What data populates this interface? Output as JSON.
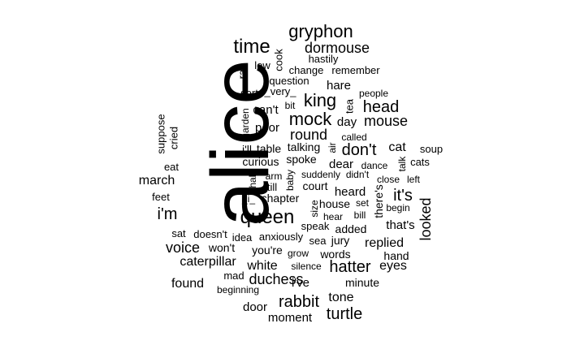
{
  "words": [
    {
      "text": "alice",
      "rotated": true
    },
    {
      "text": "queen"
    },
    {
      "text": "gryphon"
    },
    {
      "text": "time"
    },
    {
      "text": "dormouse"
    },
    {
      "text": "king"
    },
    {
      "text": "mock"
    },
    {
      "text": "head"
    },
    {
      "text": "mouse"
    },
    {
      "text": "don't"
    },
    {
      "text": "turtle"
    },
    {
      "text": "hatter"
    },
    {
      "text": "rabbit"
    },
    {
      "text": "duchess"
    },
    {
      "text": "voice"
    },
    {
      "text": "i'm"
    },
    {
      "text": "it's"
    },
    {
      "text": "looked",
      "rotated": true
    },
    {
      "text": "round"
    },
    {
      "text": "cat"
    },
    {
      "text": "march"
    },
    {
      "text": "replied"
    },
    {
      "text": "eyes"
    },
    {
      "text": "tone"
    },
    {
      "text": "caterpillar"
    },
    {
      "text": "white"
    },
    {
      "text": "found"
    },
    {
      "text": "door"
    },
    {
      "text": "moment"
    },
    {
      "text": "i've"
    },
    {
      "text": "that's"
    },
    {
      "text": "heard"
    },
    {
      "text": "dear"
    },
    {
      "text": "day"
    },
    {
      "text": "poor"
    },
    {
      "text": "can't"
    },
    {
      "text": "hare"
    },
    {
      "text": "curious"
    },
    {
      "text": "i'll"
    },
    {
      "text": "jury"
    },
    {
      "text": "words"
    },
    {
      "text": "minute"
    },
    {
      "text": "added"
    },
    {
      "text": "won't"
    },
    {
      "text": "you're"
    },
    {
      "text": "chapter"
    },
    {
      "text": "court"
    },
    {
      "text": "house"
    },
    {
      "text": "there's",
      "rotated": true
    },
    {
      "text": "hand"
    },
    {
      "text": "talking"
    },
    {
      "text": "spoke"
    },
    {
      "text": "table"
    },
    {
      "text": "soup"
    },
    {
      "text": "cats"
    },
    {
      "text": "feet"
    },
    {
      "text": "eat"
    },
    {
      "text": "cried",
      "rotated": true
    },
    {
      "text": "suppose",
      "rotated": true
    },
    {
      "text": "hastily"
    },
    {
      "text": "remember"
    },
    {
      "text": "change"
    },
    {
      "text": "question"
    },
    {
      "text": "_very_"
    },
    {
      "text": "sort"
    },
    {
      "text": "low"
    },
    {
      "text": "ran",
      "rotated": true
    },
    {
      "text": "cook",
      "rotated": true
    },
    {
      "text": "bit"
    },
    {
      "text": "tea",
      "rotated": true
    },
    {
      "text": "people"
    },
    {
      "text": "called"
    },
    {
      "text": "air",
      "rotated": true
    },
    {
      "text": "garden",
      "rotated": true
    },
    {
      "text": "dance"
    },
    {
      "text": "didn't"
    },
    {
      "text": "suddenly"
    },
    {
      "text": "close"
    },
    {
      "text": "left"
    },
    {
      "text": "talk",
      "rotated": true
    },
    {
      "text": "arm"
    },
    {
      "text": "baby",
      "rotated": true
    },
    {
      "text": "half",
      "rotated": true
    },
    {
      "text": "till"
    },
    {
      "text": "_i_"
    },
    {
      "text": "size",
      "rotated": true
    },
    {
      "text": "set"
    },
    {
      "text": "begin"
    },
    {
      "text": "bill"
    },
    {
      "text": "hear"
    },
    {
      "text": "speak"
    },
    {
      "text": "sea"
    },
    {
      "text": "anxiously"
    },
    {
      "text": "idea"
    },
    {
      "text": "doesn't"
    },
    {
      "text": "sat"
    },
    {
      "text": "grow"
    },
    {
      "text": "silence"
    },
    {
      "text": "mad"
    },
    {
      "text": "beginning"
    }
  ]
}
